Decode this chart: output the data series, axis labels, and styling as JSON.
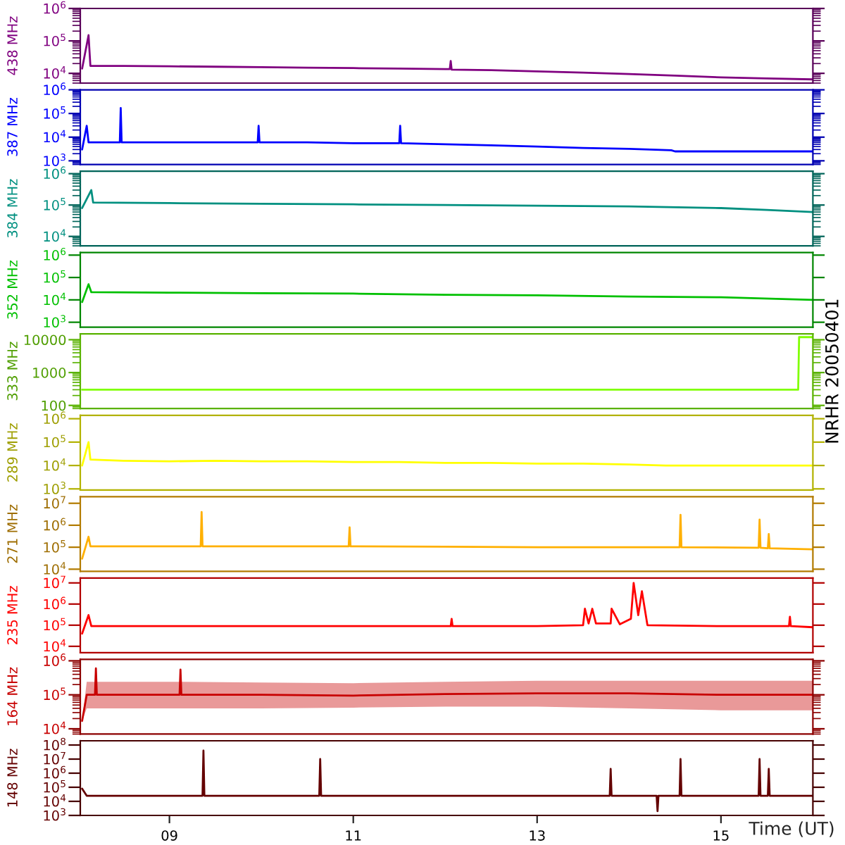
{
  "chart_data": [
    {
      "type": "line",
      "ylabel": "438 MHz",
      "log": "y",
      "ylim": [
        5000,
        1000000
      ],
      "yticks": [
        {
          "value": 10000,
          "label": "10$^{4}$"
        },
        {
          "value": 100000,
          "label": "10$^{5}$"
        },
        {
          "value": 1000000,
          "label": "10$^{6}$"
        }
      ],
      "xlim": [
        8.03,
        16.0
      ],
      "tick_labels": "y",
      "series": [
        {
          "color": "#800080",
          "x": [
            8.05,
            8.12,
            8.14,
            8.5,
            9,
            9.5,
            10,
            10.5,
            11,
            11.5,
            12,
            12.05,
            12.06,
            12.07,
            12.5,
            13,
            13.5,
            14,
            14.5,
            15,
            15.5,
            16.0
          ],
          "values": [
            14000,
            150000,
            17000,
            17000,
            16500,
            16000,
            15500,
            15000,
            14500,
            14000,
            13500,
            13500,
            24000,
            13000,
            12500,
            11500,
            10500,
            9500,
            8500,
            7500,
            7000,
            6500
          ]
        }
      ]
    },
    {
      "type": "line",
      "ylabel": "387 MHz",
      "log": "y",
      "ylim": [
        700,
        1000000
      ],
      "yticks": [
        {
          "value": 1000,
          "label": "10$^{3}$"
        },
        {
          "value": 10000,
          "label": "10$^{4}$"
        },
        {
          "value": 100000,
          "label": "10$^{5}$"
        },
        {
          "value": 1000000,
          "label": "10$^{6}$"
        }
      ],
      "xlim": [
        8.03,
        16.0
      ],
      "tick_labels": "y",
      "series": [
        {
          "color": "#0000ff",
          "x": [
            8.05,
            8.1,
            8.12,
            8.3,
            8.46,
            8.47,
            8.48,
            9,
            9.5,
            9.96,
            9.97,
            9.98,
            10.5,
            11,
            11.5,
            11.51,
            11.52,
            12,
            12.5,
            13,
            13.5,
            14,
            14.46,
            14.5,
            16.0
          ],
          "values": [
            3000,
            30000,
            6000,
            6000,
            6000,
            170000,
            6000,
            6000,
            6000,
            6000,
            30000,
            6000,
            6000,
            5500,
            5500,
            30000,
            5500,
            5000,
            4500,
            4000,
            3500,
            3200,
            2800,
            2500,
            2500
          ]
        }
      ]
    },
    {
      "type": "line",
      "ylabel": "384 MHz",
      "log": "y",
      "ylim": [
        5000,
        1200000
      ],
      "yticks": [
        {
          "value": 10000,
          "label": "10$^{4}$"
        },
        {
          "value": 100000,
          "label": "10$^{5}$"
        },
        {
          "value": 1000000,
          "label": "10$^{6}$"
        }
      ],
      "xlim": [
        8.03,
        16.0
      ],
      "tick_labels": "y",
      "series": [
        {
          "color": "#009080",
          "x": [
            8.05,
            8.15,
            8.17,
            9,
            10,
            11,
            12,
            13,
            14,
            15,
            15.5,
            16.0
          ],
          "values": [
            80000,
            300000,
            120000,
            115000,
            110000,
            105000,
            100000,
            95000,
            90000,
            80000,
            70000,
            60000
          ]
        }
      ]
    },
    {
      "type": "line",
      "ylabel": "352 MHz",
      "log": "y",
      "ylim": [
        600,
        1300000
      ],
      "yticks": [
        {
          "value": 1000,
          "label": "10$^{3}$"
        },
        {
          "value": 10000,
          "label": "10$^{4}$"
        },
        {
          "value": 100000,
          "label": "10$^{5}$"
        },
        {
          "value": 1000000,
          "label": "10$^{6}$"
        }
      ],
      "xlim": [
        8.03,
        16.0
      ],
      "tick_labels": "y",
      "series": [
        {
          "color": "#00c000",
          "x": [
            8.05,
            8.12,
            8.15,
            9,
            10,
            11,
            12,
            13,
            14,
            15,
            16.0
          ],
          "values": [
            8000,
            50000,
            22000,
            21000,
            20000,
            19000,
            17000,
            16000,
            14000,
            13000,
            10000
          ]
        }
      ]
    },
    {
      "type": "line",
      "ylabel": "333 MHz",
      "log": "y",
      "ylim": [
        80,
        15000
      ],
      "yticks": [
        100,
        1000,
        10000
      ],
      "xlim": [
        8.03,
        16.0
      ],
      "tick_labels": "y",
      "annotations": [
        "NRHR 20050401"
      ],
      "series": [
        {
          "color": "#80ff00",
          "x": [
            8.05,
            15.84,
            15.85,
            16.0
          ],
          "values": [
            300,
            300,
            12000,
            12000
          ]
        }
      ]
    },
    {
      "type": "line",
      "ylabel": "289 MHz",
      "log": "y",
      "ylim": [
        900,
        1400000
      ],
      "yticks": [
        {
          "value": 1000,
          "label": "10$^{3}$"
        },
        {
          "value": 10000,
          "label": "10$^{4}$"
        },
        {
          "value": 100000,
          "label": "10$^{5}$"
        },
        {
          "value": 1000000,
          "label": "10$^{6}$"
        }
      ],
      "xlim": [
        8.03,
        16.0
      ],
      "tick_labels": "y",
      "series": [
        {
          "color": "#ffff00",
          "x": [
            8.05,
            8.12,
            8.14,
            8.5,
            9,
            9.5,
            10,
            10.5,
            11,
            11.5,
            12,
            12.5,
            13,
            13.5,
            14,
            14.4,
            16.0
          ],
          "values": [
            10000,
            100000,
            18000,
            16000,
            15000,
            16000,
            15000,
            15000,
            14000,
            14000,
            13000,
            13000,
            12000,
            12000,
            11000,
            10000,
            10000
          ]
        }
      ]
    },
    {
      "type": "line",
      "ylabel": "271 MHz",
      "log": "y",
      "ylim": [
        8000,
        20000000
      ],
      "yticks": [
        {
          "value": 10000,
          "label": "10$^{4}$"
        },
        {
          "value": 100000,
          "label": "10$^{5}$"
        },
        {
          "value": 1000000,
          "label": "10$^{6}$"
        },
        {
          "value": 10000000,
          "label": "10$^{7}$"
        }
      ],
      "xlim": [
        8.03,
        16.0
      ],
      "tick_labels": "y",
      "series": [
        {
          "color": "#ffb000",
          "x": [
            8.05,
            8.12,
            8.14,
            8.6,
            9.34,
            9.35,
            9.36,
            10.2,
            10.95,
            10.96,
            10.97,
            12,
            13,
            14.55,
            14.56,
            14.57,
            15.41,
            15.42,
            15.43,
            15.51,
            15.52,
            15.53,
            16.0
          ],
          "values": [
            30000,
            300000,
            110000,
            110000,
            110000,
            4000000,
            110000,
            110000,
            110000,
            800000,
            110000,
            105000,
            100000,
            100000,
            3000000,
            100000,
            95000,
            1800000,
            95000,
            90000,
            400000,
            90000,
            80000
          ]
        }
      ]
    },
    {
      "type": "line",
      "ylabel": "235 MHz",
      "log": "y",
      "ylim": [
        5000,
        17000000
      ],
      "yticks": [
        {
          "value": 10000,
          "label": "10$^{4}$"
        },
        {
          "value": 100000,
          "label": "10$^{5}$"
        },
        {
          "value": 1000000,
          "label": "10$^{6}$"
        },
        {
          "value": 10000000,
          "label": "10$^{7}$"
        }
      ],
      "xlim": [
        8.03,
        16.0
      ],
      "tick_labels": "y",
      "series": [
        {
          "color": "#ff0000",
          "x": [
            8.05,
            8.12,
            8.15,
            9,
            10,
            11,
            12.06,
            12.07,
            12.08,
            13,
            13.5,
            13.52,
            13.56,
            13.6,
            13.64,
            13.8,
            13.81,
            13.9,
            14.02,
            14.05,
            14.1,
            14.14,
            14.2,
            15,
            15.74,
            15.75,
            15.76,
            16.0
          ],
          "values": [
            40000,
            300000,
            90000,
            90000,
            90000,
            90000,
            90000,
            200000,
            90000,
            90000,
            100000,
            600000,
            120000,
            600000,
            120000,
            120000,
            600000,
            110000,
            200000,
            10000000,
            300000,
            4000000,
            100000,
            90000,
            90000,
            250000,
            90000,
            80000
          ]
        }
      ]
    },
    {
      "type": "line",
      "ylabel": "164 MHz",
      "log": "y",
      "ylim": [
        7000,
        1100000
      ],
      "yticks": [
        {
          "value": 10000,
          "label": "10$^{4}$"
        },
        {
          "value": 100000,
          "label": "10$^{5}$"
        },
        {
          "value": 1000000,
          "label": "10$^{6}$"
        }
      ],
      "xlim": [
        8.03,
        16.0
      ],
      "tick_labels": "y",
      "series": [
        {
          "color": "#c80000",
          "x": [
            8.05,
            8.1,
            8.19,
            8.2,
            8.21,
            9.11,
            9.12,
            9.13,
            10,
            11,
            12,
            13,
            14,
            15,
            16.0
          ],
          "values": [
            17000,
            100000,
            100000,
            600000,
            100000,
            100000,
            550000,
            100000,
            100000,
            95000,
            105000,
            110000,
            110000,
            100000,
            100000
          ],
          "lower": [
            17000,
            40000,
            40000,
            40000,
            40000,
            40000,
            40000,
            40000,
            40000,
            42000,
            45000,
            45000,
            40000,
            35000,
            35000
          ],
          "upper": [
            17000,
            240000,
            240000,
            240000,
            240000,
            240000,
            240000,
            240000,
            230000,
            220000,
            240000,
            260000,
            260000,
            260000,
            260000
          ]
        }
      ]
    },
    {
      "type": "line",
      "ylabel": "148 MHz",
      "xlabel": "Time (UT)",
      "log": "y",
      "ylim": [
        1000,
        200000000
      ],
      "yticks": [
        {
          "value": 1000,
          "label": "10$^{3}$"
        },
        {
          "value": 10000,
          "label": "10$^{4}$"
        },
        {
          "value": 100000,
          "label": "10$^{5}$"
        },
        {
          "value": 1000000,
          "label": "10$^{6}$"
        },
        {
          "value": 10000000,
          "label": "10$^{7}$"
        },
        {
          "value": 100000000,
          "label": "10$^{8}$"
        }
      ],
      "xlim": [
        8.03,
        16.0
      ],
      "xticks": [
        {
          "value": 9,
          "label": "09"
        },
        11,
        13,
        15
      ],
      "series": [
        {
          "color": "#640000",
          "x": [
            8.05,
            8.1,
            8.2,
            9.36,
            9.37,
            9.38,
            10.63,
            10.64,
            10.65,
            12,
            13.79,
            13.8,
            13.81,
            14.3,
            14.31,
            14.32,
            14.55,
            14.56,
            14.57,
            15.41,
            15.42,
            15.43,
            15.51,
            15.52,
            15.53,
            16.0
          ],
          "values": [
            80000,
            25000,
            25000,
            25000,
            40000000,
            25000,
            25000,
            10000000,
            25000,
            25000,
            25000,
            2000000,
            25000,
            25000,
            2000,
            25000,
            25000,
            10000000,
            25000,
            25000,
            10000000,
            25000,
            25000,
            2000000,
            25000,
            25000
          ]
        }
      ]
    }
  ]
}
